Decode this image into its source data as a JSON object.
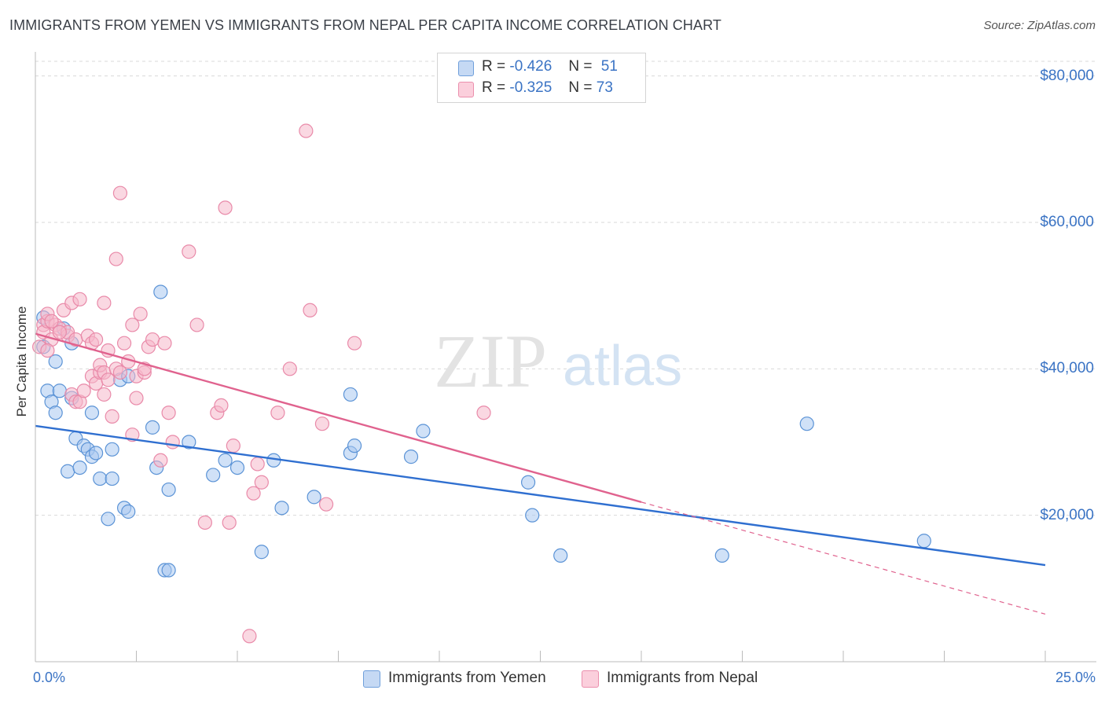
{
  "title": "IMMIGRANTS FROM YEMEN VS IMMIGRANTS FROM NEPAL PER CAPITA INCOME CORRELATION CHART",
  "source": "Source: ZipAtlas.com",
  "watermark": {
    "zip": "ZIP",
    "atlas": "atlas"
  },
  "legend": {
    "r_label": "R =",
    "n_label": "N =",
    "rows": [
      {
        "r": "-0.426",
        "n": "51"
      },
      {
        "r": "-0.325",
        "n": "73"
      }
    ]
  },
  "colors": {
    "yemen_fill": "#a9c8f0",
    "yemen_stroke": "#5b93d6",
    "yemen_line": "#2f6fd0",
    "nepal_fill": "#f6b8cb",
    "nepal_stroke": "#e98aa9",
    "nepal_line": "#e0628e",
    "grid": "#d9d9d9",
    "tick_text": "#3a73c4"
  },
  "chart_data": {
    "type": "scatter",
    "title": "IMMIGRANTS FROM YEMEN VS IMMIGRANTS FROM NEPAL PER CAPITA INCOME CORRELATION CHART",
    "xlabel": "",
    "ylabel": "Per Capita Income",
    "xlim": [
      0,
      25
    ],
    "ylim": [
      0,
      82000
    ],
    "x_tick_labels": [
      "0.0%",
      "25.0%"
    ],
    "y_ticks": [
      20000,
      40000,
      60000,
      80000
    ],
    "y_tick_labels": [
      "$20,000",
      "$40,000",
      "$60,000",
      "$80,000"
    ],
    "grid": true,
    "legend_position": "top-center and bottom",
    "series": [
      {
        "name": "Immigrants from Yemen",
        "r": -0.426,
        "n": 51,
        "trend": {
          "x0": 0,
          "y0": 32200,
          "x1": 25,
          "y1": 13200
        },
        "points": [
          [
            0.2,
            43000
          ],
          [
            0.2,
            47000
          ],
          [
            0.3,
            37000
          ],
          [
            0.4,
            35500
          ],
          [
            0.5,
            34000
          ],
          [
            0.5,
            41000
          ],
          [
            0.6,
            37000
          ],
          [
            0.7,
            45500
          ],
          [
            0.8,
            26000
          ],
          [
            0.9,
            36000
          ],
          [
            0.9,
            43500
          ],
          [
            1.0,
            30500
          ],
          [
            1.1,
            26500
          ],
          [
            1.2,
            29500
          ],
          [
            1.3,
            29000
          ],
          [
            1.4,
            28000
          ],
          [
            1.4,
            34000
          ],
          [
            1.5,
            28500
          ],
          [
            1.6,
            25000
          ],
          [
            1.8,
            19500
          ],
          [
            1.9,
            25000
          ],
          [
            1.9,
            29000
          ],
          [
            2.1,
            38500
          ],
          [
            2.2,
            21000
          ],
          [
            2.3,
            39000
          ],
          [
            2.3,
            20500
          ],
          [
            2.9,
            32000
          ],
          [
            3.0,
            26500
          ],
          [
            3.1,
            50500
          ],
          [
            3.2,
            12500
          ],
          [
            3.3,
            12500
          ],
          [
            3.3,
            23500
          ],
          [
            3.8,
            30000
          ],
          [
            4.4,
            25500
          ],
          [
            4.7,
            27500
          ],
          [
            5.0,
            26500
          ],
          [
            5.6,
            15000
          ],
          [
            5.9,
            27500
          ],
          [
            6.1,
            21000
          ],
          [
            6.9,
            22500
          ],
          [
            7.8,
            36500
          ],
          [
            7.8,
            28500
          ],
          [
            7.9,
            29500
          ],
          [
            9.3,
            28000
          ],
          [
            9.6,
            31500
          ],
          [
            12.2,
            24500
          ],
          [
            12.3,
            20000
          ],
          [
            13.0,
            14500
          ],
          [
            17.0,
            14500
          ],
          [
            19.1,
            32500
          ],
          [
            22.0,
            16500
          ]
        ]
      },
      {
        "name": "Immigrants from Nepal",
        "r": -0.325,
        "n": 73,
        "trend": {
          "x0": 0,
          "y0": 44800,
          "x1": 15,
          "y1": 21800
        },
        "trend_dashed": {
          "x0": 15,
          "y0": 21800,
          "x1": 25,
          "y1": 6500
        },
        "points": [
          [
            0.1,
            43000
          ],
          [
            0.2,
            46000
          ],
          [
            0.2,
            45000
          ],
          [
            0.3,
            46500
          ],
          [
            0.3,
            47500
          ],
          [
            0.4,
            44000
          ],
          [
            0.5,
            46000
          ],
          [
            0.6,
            45500
          ],
          [
            0.7,
            48000
          ],
          [
            0.8,
            44500
          ],
          [
            0.8,
            45000
          ],
          [
            0.9,
            49000
          ],
          [
            0.9,
            36500
          ],
          [
            1.0,
            35500
          ],
          [
            1.0,
            44000
          ],
          [
            1.1,
            49500
          ],
          [
            1.1,
            35500
          ],
          [
            1.2,
            37000
          ],
          [
            1.3,
            44500
          ],
          [
            1.4,
            43500
          ],
          [
            1.4,
            39000
          ],
          [
            1.5,
            44000
          ],
          [
            1.5,
            38000
          ],
          [
            1.6,
            39500
          ],
          [
            1.6,
            40500
          ],
          [
            1.7,
            36500
          ],
          [
            1.7,
            49000
          ],
          [
            1.7,
            39500
          ],
          [
            1.8,
            38500
          ],
          [
            1.8,
            42500
          ],
          [
            1.9,
            33500
          ],
          [
            2.0,
            55000
          ],
          [
            2.0,
            40000
          ],
          [
            2.1,
            64000
          ],
          [
            2.1,
            39500
          ],
          [
            2.2,
            43500
          ],
          [
            2.3,
            41000
          ],
          [
            2.4,
            31000
          ],
          [
            2.4,
            46000
          ],
          [
            2.5,
            39000
          ],
          [
            2.5,
            36000
          ],
          [
            2.6,
            47500
          ],
          [
            2.7,
            39500
          ],
          [
            2.7,
            40000
          ],
          [
            2.8,
            43000
          ],
          [
            2.9,
            44000
          ],
          [
            3.1,
            27500
          ],
          [
            3.2,
            43500
          ],
          [
            3.3,
            34000
          ],
          [
            3.4,
            30000
          ],
          [
            3.8,
            56000
          ],
          [
            4.0,
            46000
          ],
          [
            4.2,
            19000
          ],
          [
            4.5,
            34000
          ],
          [
            4.6,
            35000
          ],
          [
            4.7,
            62000
          ],
          [
            4.8,
            19000
          ],
          [
            4.9,
            29500
          ],
          [
            5.3,
            3500
          ],
          [
            5.4,
            23000
          ],
          [
            5.5,
            27000
          ],
          [
            5.6,
            24500
          ],
          [
            6.0,
            34000
          ],
          [
            6.3,
            40000
          ],
          [
            6.7,
            72500
          ],
          [
            6.8,
            48000
          ],
          [
            7.1,
            32500
          ],
          [
            7.2,
            21500
          ],
          [
            7.9,
            43500
          ],
          [
            11.1,
            34000
          ],
          [
            0.3,
            42500
          ],
          [
            0.4,
            46500
          ],
          [
            0.6,
            45000
          ]
        ]
      }
    ]
  },
  "bottom_legend": [
    {
      "label": "Immigrants from Yemen"
    },
    {
      "label": "Immigrants from Nepal"
    }
  ]
}
